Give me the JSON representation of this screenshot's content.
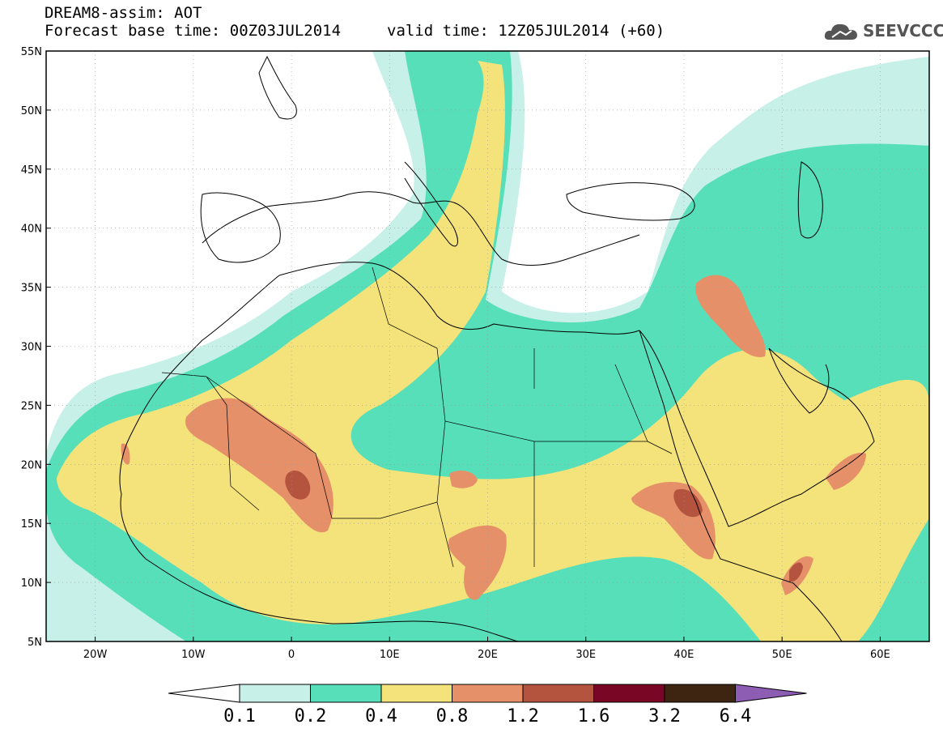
{
  "header": {
    "title": "DREAM8-assim: AOT",
    "base_time": "Forecast base time: 00Z03JUL2014",
    "valid_time": "valid time: 12Z05JUL2014 (+60)",
    "logo_text": "SEEVCCC"
  },
  "map": {
    "lon_range": [
      -25,
      65
    ],
    "lat_range": [
      5,
      55
    ],
    "lon_ticks": [
      {
        "value": -20,
        "label": "20W"
      },
      {
        "value": -10,
        "label": "10W"
      },
      {
        "value": 0,
        "label": "0"
      },
      {
        "value": 10,
        "label": "10E"
      },
      {
        "value": 20,
        "label": "20E"
      },
      {
        "value": 30,
        "label": "30E"
      },
      {
        "value": 40,
        "label": "40E"
      },
      {
        "value": 50,
        "label": "50E"
      },
      {
        "value": 60,
        "label": "60E"
      }
    ],
    "lat_ticks": [
      {
        "value": 5,
        "label": "5N"
      },
      {
        "value": 10,
        "label": "10N"
      },
      {
        "value": 15,
        "label": "15N"
      },
      {
        "value": 20,
        "label": "20N"
      },
      {
        "value": 25,
        "label": "25N"
      },
      {
        "value": 30,
        "label": "30N"
      },
      {
        "value": 35,
        "label": "35N"
      },
      {
        "value": 40,
        "label": "40N"
      },
      {
        "value": 45,
        "label": "45N"
      },
      {
        "value": 50,
        "label": "50N"
      },
      {
        "value": 55,
        "label": "55N"
      }
    ],
    "colors": {
      "c01": "#c6f0e8",
      "c02": "#57dfb9",
      "c04": "#f4e27a",
      "c08": "#e69069",
      "c12": "#b4543f",
      "c16": "#7a0626",
      "c32": "#3d2511",
      "c64": "#8d5db4"
    }
  },
  "colorbar": {
    "labels": [
      "0.1",
      "0.2",
      "0.4",
      "0.8",
      "1.2",
      "1.6",
      "3.2",
      "6.4"
    ],
    "colors": [
      "#c6f0e8",
      "#57dfb9",
      "#f4e27a",
      "#e69069",
      "#b4543f",
      "#7a0626",
      "#3d2511"
    ],
    "over_color": "#8d5db4",
    "under_color": "#ffffff"
  }
}
